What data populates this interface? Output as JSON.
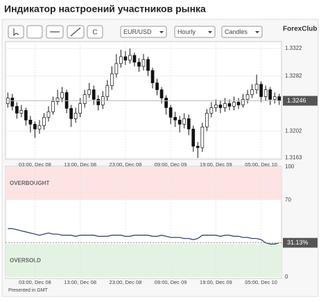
{
  "title": "Индикатор настроений участников рынка",
  "toolbar": {
    "button": "C",
    "symbol": "EUR/USD",
    "period": "Hourly",
    "style": "Candles",
    "logo": "ForexClub"
  },
  "footer": "Presented in GMT",
  "chart_data": [
    {
      "type": "candlestick",
      "grid": true,
      "categories": [
        null,
        null,
        null,
        null,
        null,
        null,
        "03:00, Dec 08",
        null,
        null,
        null,
        null,
        null,
        null,
        null,
        null,
        null,
        "13:00, Dec 08",
        null,
        null,
        null,
        null,
        null,
        null,
        null,
        null,
        null,
        "23:00, Dec 08",
        null,
        null,
        null,
        null,
        null,
        null,
        null,
        null,
        null,
        "09:00, Dec 09",
        null,
        null,
        null,
        null,
        null,
        null,
        null,
        null,
        null,
        "19:00, Dec 09",
        null,
        null,
        null,
        null,
        null,
        null,
        null,
        null,
        null,
        "05:00, Dec 10",
        null,
        null,
        null,
        null
      ],
      "open": [
        1.3242,
        1.325,
        1.3238,
        1.3228,
        1.3232,
        1.3218,
        1.3212,
        1.3205,
        1.321,
        1.3222,
        1.323,
        1.3245,
        1.325,
        1.3258,
        1.3235,
        1.322,
        1.3228,
        1.3242,
        1.3255,
        1.3262,
        1.3248,
        1.324,
        1.3252,
        1.3268,
        1.3285,
        1.33,
        1.331,
        1.3305,
        1.3312,
        1.3302,
        1.3296,
        1.3306,
        1.329,
        1.3272,
        1.3262,
        1.325,
        1.3236,
        1.3222,
        1.3218,
        1.3212,
        1.322,
        1.3205,
        1.318,
        1.3178,
        1.3208,
        1.3228,
        1.3236,
        1.324,
        1.3236,
        1.3242,
        1.3238,
        1.3244,
        1.324,
        1.3248,
        1.3255,
        1.3262,
        1.327,
        1.3252,
        1.3262,
        1.3248,
        1.3252
      ],
      "high": [
        1.3258,
        1.3256,
        1.3244,
        1.324,
        1.3236,
        1.3224,
        1.3216,
        1.3218,
        1.3228,
        1.3238,
        1.3252,
        1.3262,
        1.3266,
        1.3262,
        1.324,
        1.3236,
        1.325,
        1.3262,
        1.3272,
        1.3268,
        1.3254,
        1.326,
        1.3276,
        1.3296,
        1.3314,
        1.332,
        1.3318,
        1.3322,
        1.3316,
        1.3308,
        1.3314,
        1.331,
        1.3294,
        1.3278,
        1.3266,
        1.3254,
        1.324,
        1.323,
        1.3224,
        1.3228,
        1.3226,
        1.321,
        1.3186,
        1.3214,
        1.3234,
        1.3244,
        1.3248,
        1.3246,
        1.325,
        1.3248,
        1.3252,
        1.325,
        1.3256,
        1.3262,
        1.327,
        1.3284,
        1.3274,
        1.3268,
        1.3266,
        1.3258,
        1.3256
      ],
      "low": [
        1.3236,
        1.3232,
        1.322,
        1.3222,
        1.321,
        1.32,
        1.3192,
        1.3198,
        1.3204,
        1.3216,
        1.3226,
        1.324,
        1.3244,
        1.3228,
        1.3208,
        1.3214,
        1.3222,
        1.3236,
        1.325,
        1.324,
        1.3232,
        1.3234,
        1.3246,
        1.3262,
        1.328,
        1.3294,
        1.3298,
        1.33,
        1.3296,
        1.3288,
        1.329,
        1.3282,
        1.3264,
        1.3254,
        1.3242,
        1.3226,
        1.3212,
        1.3208,
        1.32,
        1.3206,
        1.3196,
        1.3172,
        1.3163,
        1.3172,
        1.3202,
        1.3222,
        1.323,
        1.3228,
        1.323,
        1.3232,
        1.3232,
        1.3234,
        1.3236,
        1.3242,
        1.325,
        1.3256,
        1.3244,
        1.3246,
        1.324,
        1.3242,
        1.324
      ],
      "close": [
        1.325,
        1.3238,
        1.3228,
        1.3232,
        1.3218,
        1.3212,
        1.3205,
        1.321,
        1.3222,
        1.323,
        1.3245,
        1.325,
        1.3258,
        1.3235,
        1.322,
        1.3228,
        1.3242,
        1.3255,
        1.3262,
        1.3248,
        1.324,
        1.3252,
        1.3268,
        1.3285,
        1.33,
        1.331,
        1.3305,
        1.3312,
        1.3302,
        1.3296,
        1.3306,
        1.329,
        1.3272,
        1.3262,
        1.325,
        1.3236,
        1.3222,
        1.3218,
        1.3212,
        1.322,
        1.3205,
        1.318,
        1.3178,
        1.3208,
        1.3228,
        1.3236,
        1.324,
        1.3236,
        1.3242,
        1.3238,
        1.3244,
        1.324,
        1.3248,
        1.3255,
        1.3262,
        1.327,
        1.3252,
        1.3262,
        1.3248,
        1.3252,
        1.3246
      ],
      "up_color": "#ffffff",
      "down_color": "#111111",
      "ylim": [
        1.3161,
        1.3332
      ],
      "yticks": [
        1.3322,
        1.3282,
        1.3202,
        1.3163
      ]
    },
    {
      "type": "line",
      "grid": true,
      "color": "#2f4a6e",
      "overbought_label": "OVERBOUGHT",
      "oversold_label": "OVERSOLD",
      "overbought": [
        70,
        100
      ],
      "oversold": [
        0,
        30
      ],
      "values": [
        44,
        44,
        43,
        42,
        41,
        40,
        39,
        38,
        39,
        40,
        39,
        39,
        38,
        38,
        38,
        37,
        38,
        38,
        38,
        38,
        37,
        37,
        37,
        38,
        38,
        38,
        37,
        37,
        38,
        38,
        38,
        38,
        37,
        37,
        38,
        37,
        36,
        36,
        36,
        35,
        35,
        34,
        35,
        38,
        38,
        38,
        38,
        37,
        38,
        38,
        37,
        37,
        36,
        36,
        35,
        35,
        34,
        31,
        30,
        30,
        31.13
      ],
      "last_value_label": "31.13%",
      "ylim": [
        0,
        100
      ],
      "yticks": [
        0,
        70,
        100
      ]
    }
  ]
}
